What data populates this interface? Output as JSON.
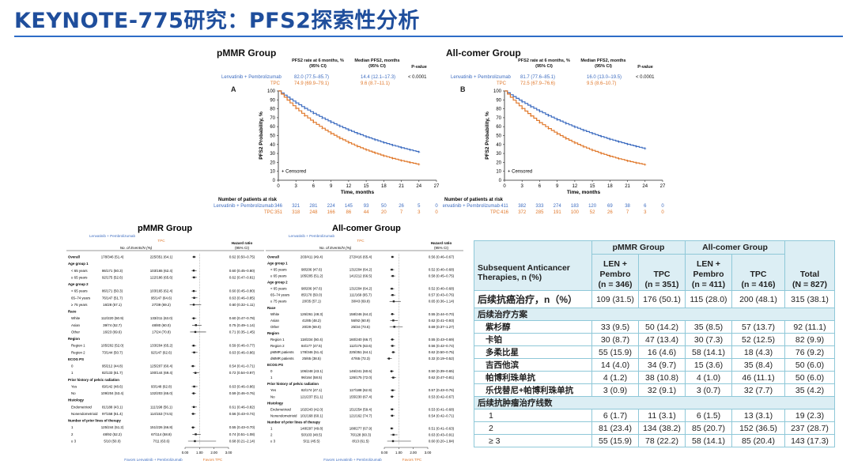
{
  "slide": {
    "title": "KEYNOTE-775研究：PFS2探索性分析"
  },
  "km": [
    {
      "heading": "pMMR Group",
      "panel": "A",
      "col_rate": "PFS2 rate at 6 months, %",
      "col_median": "Median PFS2, months",
      "col_ci": "(95% CI)",
      "col_p": "P-value",
      "rows": [
        {
          "label": "Lenvatinib + Pembrolizumab",
          "rate": "82.0 (77.5–85.7)",
          "median": "14.4 (12.1–17.3)",
          "p": "< 0.0001"
        },
        {
          "label": "TPC",
          "rate": "74.9 (69.9–79.1)",
          "median": "9.6 (8.7–11.1)",
          "p": ""
        }
      ],
      "risk_title": "Number of patients at risk",
      "risk": [
        {
          "label": "Lenvatinib + Pembrolizumab",
          "values": [
            "346",
            "321",
            "281",
            "224",
            "145",
            "93",
            "50",
            "26",
            "5",
            "0"
          ]
        },
        {
          "label": "TPC",
          "values": [
            "351",
            "318",
            "248",
            "166",
            "86",
            "44",
            "20",
            "7",
            "3",
            "0"
          ]
        }
      ]
    },
    {
      "heading": "All-comer Group",
      "panel": "B",
      "col_rate": "PFS2 rate at 6 months, %",
      "col_median": "Median PFS2, months",
      "col_ci": "(95% CI)",
      "col_p": "P-value",
      "rows": [
        {
          "label": "Lenvatinib + Pembrolizumab",
          "rate": "81.7 (77.6–85.1)",
          "median": "16.0 (13.0–19.5)",
          "p": "< 0.0001"
        },
        {
          "label": "TPC",
          "rate": "72.5 (67.9–76.6)",
          "median": "9.5 (8.6–10.7)",
          "p": ""
        }
      ],
      "risk_title": "Number of patients at risk",
      "risk": [
        {
          "label": "Lenvatinib + Pembrolizumab",
          "values": [
            "411",
            "382",
            "333",
            "274",
            "183",
            "120",
            "69",
            "38",
            "6",
            "0"
          ]
        },
        {
          "label": "TPC",
          "values": [
            "416",
            "372",
            "285",
            "191",
            "100",
            "52",
            "26",
            "7",
            "3",
            "0"
          ]
        }
      ]
    }
  ],
  "km_axes": {
    "ylabel": "PFS2 Probability, %",
    "xlabel": "Time, months",
    "censored": "+ Censored"
  },
  "forest_axis": {
    "ticks": [
      "0.00",
      "1.00",
      "2.00",
      "3.00"
    ],
    "favors_left": "Favors Lenvatinib + Pembrolizumab",
    "favors_right": "Favors TPC"
  },
  "forest": [
    {
      "heading": "pMMR Group",
      "col_lp": "Lenvatinib + Pembrolizumab",
      "col_tpc": "TPC",
      "col_events": "No. of Events/N (%)",
      "col_hr": "Hazard ratio",
      "col_ci": "(95% CI)",
      "rows": [
        {
          "label": "Overall",
          "lp": "178/346 (51.4)",
          "tpc": "225/351 (64.1)",
          "hr": "0.62 (0.50–0.75)",
          "v": 0.62,
          "lo": 0.5,
          "hi": 0.75,
          "bold": true
        },
        {
          "label": "Age group 1",
          "header": true
        },
        {
          "label": "< 65 years",
          "lp": "86/171 (50.3)",
          "tpc": "103/165 (62.4)",
          "hr": "0.60 (0.45–0.80)",
          "v": 0.6,
          "lo": 0.45,
          "hi": 0.8
        },
        {
          "label": "≥ 65 years",
          "lp": "92/175 (52.6)",
          "tpc": "122/186 (65.6)",
          "hr": "0.62 (0.47–0.81)",
          "v": 0.62,
          "lo": 0.47,
          "hi": 0.81
        },
        {
          "label": "Age group 2",
          "header": true
        },
        {
          "label": "< 65 years",
          "lp": "86/171 (50.3)",
          "tpc": "103/165 (62.4)",
          "hr": "0.60 (0.45–0.80)",
          "v": 0.6,
          "lo": 0.45,
          "hi": 0.8
        },
        {
          "label": "65–74 years",
          "lp": "76/147 (51.7)",
          "tpc": "95/147 (64.6)",
          "hr": "0.63 (0.46–0.85)",
          "v": 0.63,
          "lo": 0.46,
          "hi": 0.85
        },
        {
          "label": "≥ 75 years",
          "lp": "16/28 (57.1)",
          "tpc": "27/39 (69.2)",
          "hr": "0.60 (0.32–1.11)",
          "v": 0.6,
          "lo": 0.32,
          "hi": 1.11
        },
        {
          "label": "Race",
          "header": true
        },
        {
          "label": "White",
          "lp": "112/220 (50.9)",
          "tpc": "133/211 (63.0)",
          "hr": "0.60 (0.47–0.78)",
          "v": 0.6,
          "lo": 0.47,
          "hi": 0.78
        },
        {
          "label": "Asian",
          "lp": "39/74 (52.7)",
          "tpc": "48/80 (60.0)",
          "hr": "0.75 (0.49–1.14)",
          "v": 0.75,
          "lo": 0.49,
          "hi": 1.14
        },
        {
          "label": "Other",
          "lp": "16/23 (69.6)",
          "tpc": "17/24 (70.8)",
          "hr": "0.71 (0.35–1.45)",
          "v": 0.71,
          "lo": 0.35,
          "hi": 1.45
        },
        {
          "label": "Region",
          "header": true
        },
        {
          "label": "Region 1",
          "lp": "105/202 (52.0)",
          "tpc": "133/204 (65.2)",
          "hr": "0.59 (0.46–0.77)",
          "v": 0.59,
          "lo": 0.46,
          "hi": 0.77
        },
        {
          "label": "Region 2",
          "lp": "73/144 (50.7)",
          "tpc": "92/147 (62.6)",
          "hr": "0.63 (0.46–0.86)",
          "v": 0.63,
          "lo": 0.46,
          "hi": 0.86
        },
        {
          "label": "ECOG PS",
          "header": true
        },
        {
          "label": "0",
          "lp": "95/212 (44.8)",
          "tpc": "125/207 (60.4)",
          "hr": "0.54 (0.41–0.71)",
          "v": 0.54,
          "lo": 0.41,
          "hi": 0.71
        },
        {
          "label": "1",
          "lp": "82/133 (61.7)",
          "tpc": "100/144 (69.4)",
          "hr": "0.72 (0.54–0.97)",
          "v": 0.72,
          "lo": 0.54,
          "hi": 0.97
        },
        {
          "label": "Prior history of pelvic radiation",
          "header": true
        },
        {
          "label": "Yes",
          "lp": "69/142 (48.6)",
          "tpc": "93/148 (62.8)",
          "hr": "0.63 (0.46–0.86)",
          "v": 0.63,
          "lo": 0.46,
          "hi": 0.86
        },
        {
          "label": "No",
          "lp": "109/204 (53.4)",
          "tpc": "132/203 (65.0)",
          "hr": "0.59 (0.46–0.76)",
          "v": 0.59,
          "lo": 0.46,
          "hi": 0.76
        },
        {
          "label": "Histology",
          "header": true
        },
        {
          "label": "Endometrioid",
          "lp": "81/188 (43.1)",
          "tpc": "111/198 (56.1)",
          "hr": "0.61 (0.46–0.82)",
          "v": 0.61,
          "lo": 0.46,
          "hi": 0.82
        },
        {
          "label": "Nonendometrioid",
          "lp": "97/158 (61.4)",
          "tpc": "114/153 (74.5)",
          "hr": "0.56 (0.43–0.74)",
          "v": 0.56,
          "lo": 0.43,
          "hi": 0.74
        },
        {
          "label": "Number of prior lines of therapy",
          "header": true
        },
        {
          "label": "1",
          "lp": "125/244 (51.2)",
          "tpc": "151/226 (66.8)",
          "hr": "0.55 (0.43–0.70)",
          "v": 0.55,
          "lo": 0.43,
          "hi": 0.7
        },
        {
          "label": "2",
          "lp": "48/92 (52.2)",
          "tpc": "67/114 (58.8)",
          "hr": "0.74 (0.51–1.08)",
          "v": 0.74,
          "lo": 0.51,
          "hi": 1.08
        },
        {
          "label": "≥ 3",
          "lp": "5/10 (50.0)",
          "tpc": "7/11 (63.6)",
          "hr": "0.68 (0.21–2.14)",
          "v": 0.68,
          "lo": 0.21,
          "hi": 2.14
        }
      ]
    },
    {
      "heading": "All-comer Group",
      "col_lp": "Lenvatinib + Pembrolizumab",
      "col_tpc": "TPC",
      "col_events": "No. of Events/N (%)",
      "col_hr": "Hazard ratio",
      "col_ci": "(95% CI)",
      "rows": [
        {
          "label": "Overall",
          "lp": "203/411 (49.4)",
          "tpc": "272/416 (65.4)",
          "hr": "0.56 (0.46–0.67)",
          "v": 0.56,
          "lo": 0.46,
          "hi": 0.67,
          "bold": true
        },
        {
          "label": "Age group 1",
          "header": true
        },
        {
          "label": "< 65 years",
          "lp": "98/206 (47.6)",
          "tpc": "131/204 (64.2)",
          "hr": "0.52 (0.40–0.68)",
          "v": 0.52,
          "lo": 0.4,
          "hi": 0.68
        },
        {
          "label": "≥ 65 years",
          "lp": "105/205 (51.2)",
          "tpc": "141/212 (66.5)",
          "hr": "0.58 (0.45–0.75)",
          "v": 0.58,
          "lo": 0.45,
          "hi": 0.75
        },
        {
          "label": "Age group 2",
          "header": true
        },
        {
          "label": "< 65 years",
          "lp": "98/206 (47.6)",
          "tpc": "131/204 (64.2)",
          "hr": "0.52 (0.40–0.68)",
          "v": 0.52,
          "lo": 0.4,
          "hi": 0.68
        },
        {
          "label": "65–74 years",
          "lp": "85/170 (50.0)",
          "tpc": "111/169 (65.7)",
          "hr": "0.57 (0.43–0.76)",
          "v": 0.57,
          "lo": 0.43,
          "hi": 0.76
        },
        {
          "label": "≥ 75 years",
          "lp": "20/35 (57.1)",
          "tpc": "30/43 (69.8)",
          "hr": "0.65 (0.36–1.14)",
          "v": 0.65,
          "lo": 0.36,
          "hi": 1.14
        },
        {
          "label": "Race",
          "header": true
        },
        {
          "label": "White",
          "lp": "126/261 (48.3)",
          "tpc": "158/246 (64.2)",
          "hr": "0.55 (0.44–0.70)",
          "v": 0.55,
          "lo": 0.44,
          "hi": 0.7
        },
        {
          "label": "Asian",
          "lp": "41/85 (48.2)",
          "tpc": "56/92 (60.9)",
          "hr": "0.62 (0.41–0.93)",
          "v": 0.62,
          "lo": 0.41,
          "hi": 0.93
        },
        {
          "label": "Other",
          "lp": "20/29 (69.0)",
          "tpc": "25/34 (73.5)",
          "hr": "0.69 (0.37–1.27)",
          "v": 0.69,
          "lo": 0.37,
          "hi": 1.27
        },
        {
          "label": "Region",
          "header": true
        },
        {
          "label": "Region 1",
          "lp": "118/234 (50.4)",
          "tpc": "160/240 (66.7)",
          "hr": "0.55 (0.43–0.69)",
          "v": 0.55,
          "lo": 0.43,
          "hi": 0.69
        },
        {
          "label": "Region 2",
          "lp": "84/177 (47.5)",
          "tpc": "112/176 (63.6)",
          "hr": "0.56 (0.42–0.74)",
          "v": 0.56,
          "lo": 0.42,
          "hi": 0.74
        },
        {
          "label": "pMMR patients",
          "lp": "178/346 (51.4)",
          "tpc": "225/351 (64.1)",
          "hr": "0.62 (0.50–0.75)",
          "v": 0.62,
          "lo": 0.5,
          "hi": 0.75
        },
        {
          "label": "dMMR patients",
          "lp": "25/65 (38.5)",
          "tpc": "47/65 (72.3)",
          "hr": "0.32 (0.19–0.52)",
          "v": 0.32,
          "lo": 0.19,
          "hi": 0.52
        },
        {
          "label": "ECOG PS",
          "header": true
        },
        {
          "label": "0",
          "lp": "106/248 (43.1)",
          "tpc": "146/241 (60.6)",
          "hr": "0.50 (0.39–0.65)",
          "v": 0.5,
          "lo": 0.39,
          "hi": 0.65
        },
        {
          "label": "1",
          "lp": "96/164 (58.5)",
          "tpc": "126/175 (72.0)",
          "hr": "0.62 (0.47–0.81)",
          "v": 0.62,
          "lo": 0.47,
          "hi": 0.81
        },
        {
          "label": "Prior history of pelvic radiation",
          "header": true
        },
        {
          "label": "Yes",
          "lp": "82/174 (47.1)",
          "tpc": "117/188 (62.9)",
          "hr": "0.57 (0.43–0.76)",
          "v": 0.57,
          "lo": 0.43,
          "hi": 0.76
        },
        {
          "label": "No",
          "lp": "121/237 (51.1)",
          "tpc": "155/230 (67.4)",
          "hr": "0.53 (0.42–0.67)",
          "v": 0.53,
          "lo": 0.42,
          "hi": 0.67
        },
        {
          "label": "Histology",
          "header": true
        },
        {
          "label": "Endometrioid",
          "lp": "102/243 (42.0)",
          "tpc": "151/254 (59.4)",
          "hr": "0.53 (0.41–0.68)",
          "v": 0.53,
          "lo": 0.41,
          "hi": 0.68
        },
        {
          "label": "Nonendometrioid",
          "lp": "101/168 (60.1)",
          "tpc": "121/162 (74.7)",
          "hr": "0.54 (0.42–0.71)",
          "v": 0.54,
          "lo": 0.42,
          "hi": 0.71
        },
        {
          "label": "Number of prior lines of therapy",
          "header": true
        },
        {
          "label": "1",
          "lp": "148/297 (49.8)",
          "tpc": "188/277 (67.9)",
          "hr": "0.51 (0.41–0.63)",
          "v": 0.51,
          "lo": 0.41,
          "hi": 0.63
        },
        {
          "label": "2",
          "lp": "50/103 (48.5)",
          "tpc": "76/128 (60.3)",
          "hr": "0.63 (0.43–0.91)",
          "v": 0.63,
          "lo": 0.43,
          "hi": 0.91
        },
        {
          "label": "≥ 3",
          "lp": "5/11 (45.5)",
          "tpc": "8/13 (61.5)",
          "hr": "0.60 (0.20–1.84)",
          "v": 0.6,
          "lo": 0.2,
          "hi": 1.84
        }
      ]
    }
  ],
  "sub_table": {
    "group_pmmr": "pMMR Group",
    "group_all": "All-comer Group",
    "row_header_1": "Subsequent Anticancer",
    "row_header_2": "Therapies, n (%)",
    "cols": [
      {
        "l1": "LEN +",
        "l2": "Pembro",
        "n": "(n = 346)"
      },
      {
        "l1": "",
        "l2": "TPC",
        "n": "(n = 351)"
      },
      {
        "l1": "LEN +",
        "l2": "Pembro",
        "n": "(n = 411)"
      },
      {
        "l1": "",
        "l2": "TPC",
        "n": "(n = 416)"
      },
      {
        "l1": "",
        "l2": "Total",
        "n": "(N = 827)"
      }
    ],
    "rows": [
      {
        "label": "后续抗癌治疗，n（%）",
        "values": [
          "109 (31.5)",
          "176 (50.1)",
          "115 (28.0)",
          "200 (48.1)",
          "315 (38.1)"
        ],
        "style": "big"
      },
      {
        "label": "后续治疗方案",
        "values": [],
        "style": "section"
      },
      {
        "label": "紫杉醇",
        "values": [
          "33 (9.5)",
          "50 (14.2)",
          "35 (8.5)",
          "57 (13.7)",
          "92 (11.1)"
        ],
        "style": "item"
      },
      {
        "label": "卡铂",
        "values": [
          "30 (8.7)",
          "47 (13.4)",
          "30 (7.3)",
          "52 (12.5)",
          "82 (9.9)"
        ],
        "style": "item"
      },
      {
        "label": "多柔比星",
        "values": [
          "55 (15.9)",
          "16 (4.6)",
          "58 (14.1)",
          "18 (4.3)",
          "76 (9.2)"
        ],
        "style": "item"
      },
      {
        "label": "吉西他滨",
        "values": [
          "14 (4.0)",
          "34 (9.7)",
          "15 (3.6)",
          "35 (8.4)",
          "50 (6.0)"
        ],
        "style": "item"
      },
      {
        "label": "帕博利珠单抗",
        "values": [
          "4 (1.2)",
          "38 (10.8)",
          "4 (1.0)",
          "46 (11.1)",
          "50 (6.0)"
        ],
        "style": "item"
      },
      {
        "label": "乐伐替尼+帕博利珠单抗",
        "values": [
          "3 (0.9)",
          "32 (9.1)",
          "3 (0.7)",
          "32 (7.7)",
          "35 (4.2)"
        ],
        "style": "item"
      },
      {
        "label": "后续抗肿瘤治疗线数",
        "values": [],
        "style": "section"
      },
      {
        "label": "1",
        "values": [
          "6 (1.7)",
          "11 (3.1)",
          "6 (1.5)",
          "13 (3.1)",
          "19 (2.3)"
        ],
        "style": "line"
      },
      {
        "label": "2",
        "values": [
          "81 (23.4)",
          "134 (38.2)",
          "85 (20.7)",
          "152 (36.5)",
          "237 (28.7)"
        ],
        "style": "line"
      },
      {
        "label": "≥ 3",
        "values": [
          "55 (15.9)",
          "78 (22.2)",
          "58 (14.1)",
          "85 (20.4)",
          "143 (17.3)"
        ],
        "style": "line"
      }
    ]
  },
  "colors": {
    "title": "#1f4e9c",
    "lenvatinib": "#3d6cc0",
    "tpc": "#e0782b",
    "table_border": "#8fc8d8",
    "table_shade": "#dceef4"
  }
}
